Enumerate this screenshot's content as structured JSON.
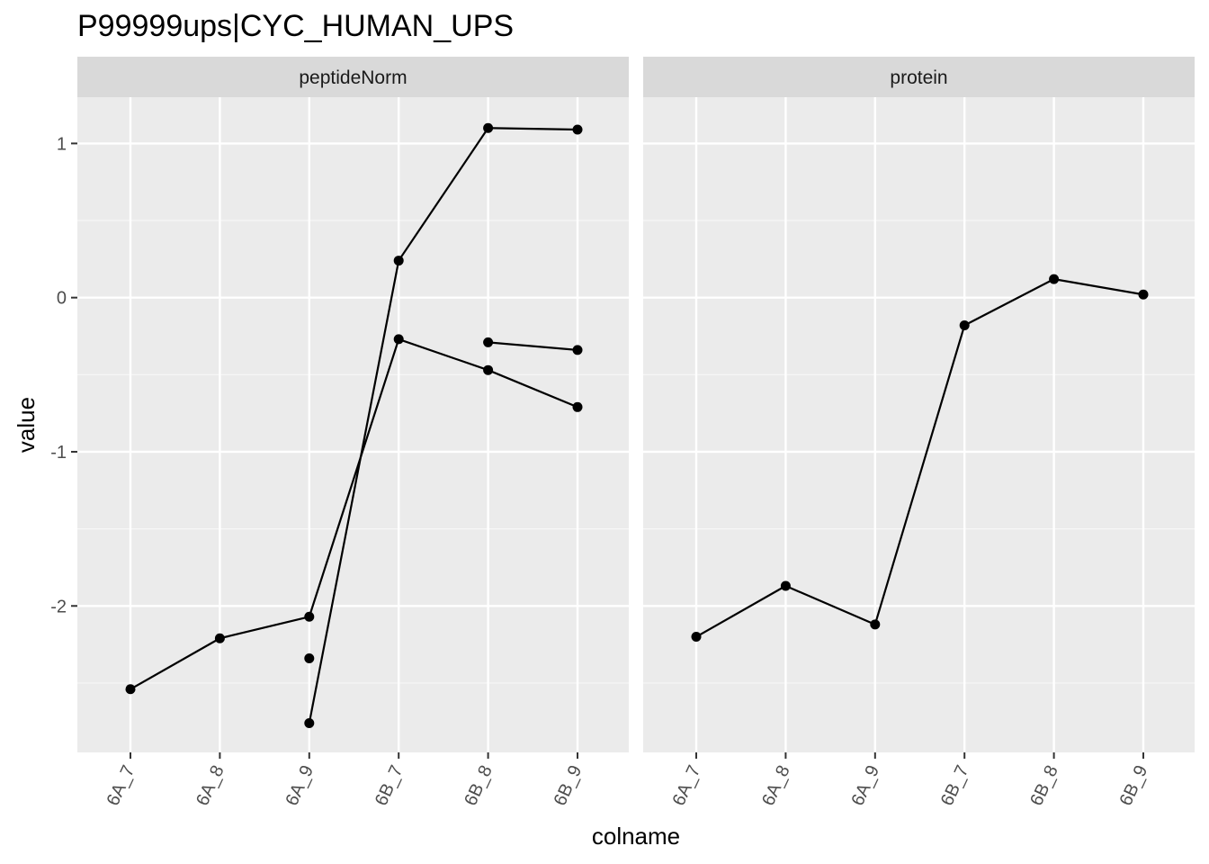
{
  "chart_data": {
    "type": "line",
    "title": "P99999ups|CYC_HUMAN_UPS",
    "xlabel": "colname",
    "ylabel": "value",
    "categories": [
      "6A_7",
      "6A_8",
      "6A_9",
      "6B_7",
      "6B_8",
      "6B_9"
    ],
    "ylim": [
      -2.95,
      1.3
    ],
    "yticks": [
      1,
      0,
      -1,
      -2
    ],
    "grid": true,
    "facets": [
      {
        "name": "peptideNorm",
        "series": [
          {
            "values": [
              -2.54,
              -2.21,
              -2.07,
              -0.27,
              -0.47,
              -0.71
            ]
          },
          {
            "values": [
              null,
              null,
              -2.76,
              0.24,
              1.1,
              1.09
            ]
          },
          {
            "values": [
              null,
              null,
              null,
              null,
              -0.29,
              -0.34
            ]
          },
          {
            "values": [
              null,
              null,
              -2.34,
              null,
              null,
              null
            ]
          }
        ]
      },
      {
        "name": "protein",
        "series": [
          {
            "values": [
              -2.2,
              -1.87,
              -2.12,
              -0.18,
              0.12,
              0.02
            ]
          }
        ]
      }
    ]
  }
}
